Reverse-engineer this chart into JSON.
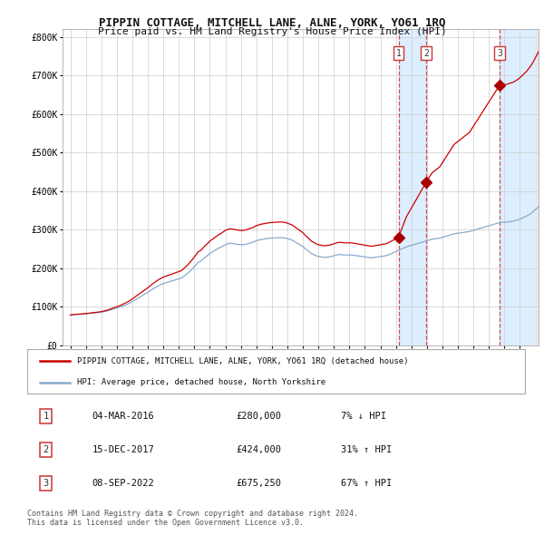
{
  "title": "PIPPIN COTTAGE, MITCHELL LANE, ALNE, YORK, YO61 1RQ",
  "subtitle": "Price paid vs. HM Land Registry's House Price Index (HPI)",
  "legend_house": "PIPPIN COTTAGE, MITCHELL LANE, ALNE, YORK, YO61 1RQ (detached house)",
  "legend_hpi": "HPI: Average price, detached house, North Yorkshire",
  "footnote1": "Contains HM Land Registry data © Crown copyright and database right 2024.",
  "footnote2": "This data is licensed under the Open Government Licence v3.0.",
  "transactions": [
    {
      "num": 1,
      "date": "04-MAR-2016",
      "price": "£280,000",
      "hpi": "7% ↓ HPI",
      "year": 2016.17
    },
    {
      "num": 2,
      "date": "15-DEC-2017",
      "price": "£424,000",
      "hpi": "31% ↑ HPI",
      "year": 2017.96
    },
    {
      "num": 3,
      "date": "08-SEP-2022",
      "price": "£675,250",
      "hpi": "67% ↑ HPI",
      "year": 2022.69
    }
  ],
  "transaction_values": [
    280000,
    424000,
    675250
  ],
  "ylim": [
    0,
    820000
  ],
  "yticks": [
    0,
    100000,
    200000,
    300000,
    400000,
    500000,
    600000,
    700000,
    800000
  ],
  "ytick_labels": [
    "£0",
    "£100K",
    "£200K",
    "£300K",
    "£400K",
    "£500K",
    "£600K",
    "£700K",
    "£800K"
  ],
  "house_color": "#cc0000",
  "hpi_color": "#88aacc",
  "shade_color": "#ddeeff",
  "hatch_color": "#cccccc",
  "background_color": "#ffffff",
  "grid_color": "#cccccc",
  "hpi_data_monthly": {
    "start_year": 1995,
    "start_month": 1,
    "values": [
      78000,
      78500,
      79000,
      79200,
      79400,
      79600,
      79800,
      80000,
      80200,
      80400,
      80600,
      81000,
      81200,
      81500,
      82000,
      82300,
      82600,
      83000,
      83300,
      83600,
      84000,
      84200,
      84500,
      85000,
      85500,
      86000,
      86800,
      87500,
      88000,
      89000,
      90000,
      91000,
      92000,
      93000,
      94000,
      95000,
      96000,
      97000,
      98000,
      99000,
      100500,
      102000,
      103000,
      104500,
      106000,
      107500,
      109000,
      111000,
      113000,
      115000,
      117000,
      119000,
      121000,
      123000,
      125000,
      127000,
      129000,
      131000,
      133000,
      135000,
      137000,
      139000,
      141500,
      144000,
      146000,
      148000,
      150000,
      152000,
      154000,
      155500,
      157000,
      158500,
      160000,
      161000,
      162000,
      163000,
      164000,
      165000,
      166000,
      167000,
      168000,
      169000,
      170000,
      171000,
      172000,
      173000,
      174000,
      176500,
      179000,
      181500,
      184000,
      187000,
      190000,
      193000,
      196500,
      200000,
      203500,
      207000,
      211000,
      215000,
      216000,
      218000,
      221000,
      224000,
      227000,
      229500,
      232000,
      235000,
      237500,
      240000,
      242000,
      244000,
      246000,
      248000,
      250000,
      252000,
      253500,
      255000,
      257000,
      259000,
      261000,
      262000,
      263000,
      264000,
      264500,
      264000,
      263500,
      263000,
      262500,
      262000,
      261500,
      261000,
      261000,
      261000,
      261000,
      261500,
      262000,
      263000,
      264000,
      265000,
      266000,
      267000,
      268000,
      270000,
      271000,
      272000,
      273000,
      274000,
      274500,
      275000,
      275500,
      276000,
      276500,
      277000,
      277500,
      278000,
      278000,
      278000,
      278500,
      278500,
      278500,
      279000,
      279000,
      279000,
      279000,
      278500,
      278000,
      277500,
      276500,
      275500,
      274500,
      273500,
      272000,
      270000,
      268000,
      266000,
      264000,
      262000,
      260000,
      258000,
      256000,
      253000,
      250000,
      247500,
      245000,
      242000,
      239500,
      237000,
      235500,
      234000,
      232500,
      231000,
      230000,
      229500,
      229000,
      228500,
      228000,
      228000,
      228000,
      228500,
      229000,
      229500,
      230000,
      231000,
      232000,
      233000,
      234000,
      234500,
      235000,
      235000,
      235000,
      234500,
      234000,
      234000,
      234000,
      234000,
      234000,
      234000,
      234000,
      233500,
      233000,
      232500,
      232000,
      231500,
      231000,
      230500,
      230000,
      229500,
      229000,
      228500,
      228000,
      227500,
      227000,
      227000,
      227000,
      227500,
      228000,
      228500,
      229000,
      229500,
      230000,
      230500,
      231000,
      231500,
      232000,
      233000,
      234000,
      235500,
      237000,
      238500,
      240000,
      241500,
      243000,
      244500,
      246000,
      247500,
      249000,
      250500,
      252000,
      253500,
      255000,
      256000,
      257000,
      258000,
      259000,
      260000,
      261000,
      262000,
      263000,
      264000,
      265000,
      266000,
      267000,
      268000,
      269000,
      270000,
      271000,
      272000,
      273000,
      274000,
      275000,
      275500,
      276000,
      276500,
      277000,
      277500,
      278000,
      279000,
      280000,
      281000,
      282000,
      283000,
      284000,
      285000,
      286000,
      287000,
      288000,
      289000,
      289500,
      290000,
      290500,
      291000,
      291500,
      292000,
      292500,
      293000,
      293500,
      294000,
      294500,
      295000,
      296000,
      297000,
      298000,
      299000,
      300000,
      301000,
      302000,
      303000,
      304000,
      305000,
      306000,
      307000,
      308000,
      309000,
      310000,
      311000,
      312000,
      313000,
      314000,
      315000,
      316000,
      317000,
      318000,
      319000,
      319500,
      319000,
      319000,
      319000,
      319500,
      320000,
      320500,
      321000,
      321500,
      322000,
      323000,
      324000,
      325000,
      326000,
      327500,
      329000,
      330500,
      332000,
      333500,
      335000,
      337000,
      339000,
      341000,
      343500,
      346000,
      349000,
      352000,
      355000,
      358000,
      361000,
      363500,
      366000,
      368000,
      370000,
      372000,
      374000,
      376000,
      378000,
      380000,
      381000,
      382000,
      383000,
      384000,
      385000,
      386000,
      387000,
      388000,
      389000,
      390000,
      391000,
      392000,
      392500,
      393000,
      393000,
      392500,
      392000,
      391500,
      391000,
      390500,
      390000,
      389500,
      389000,
      388000,
      387000,
      386500,
      386000,
      385500,
      385000,
      384500,
      384000,
      383500,
      383000,
      382500,
      382000,
      381500,
      381000,
      380500,
      380000,
      380500,
      381000,
      381500,
      382000,
      382500,
      383000,
      383500,
      384000,
      385000,
      385500,
      386000
    ]
  }
}
